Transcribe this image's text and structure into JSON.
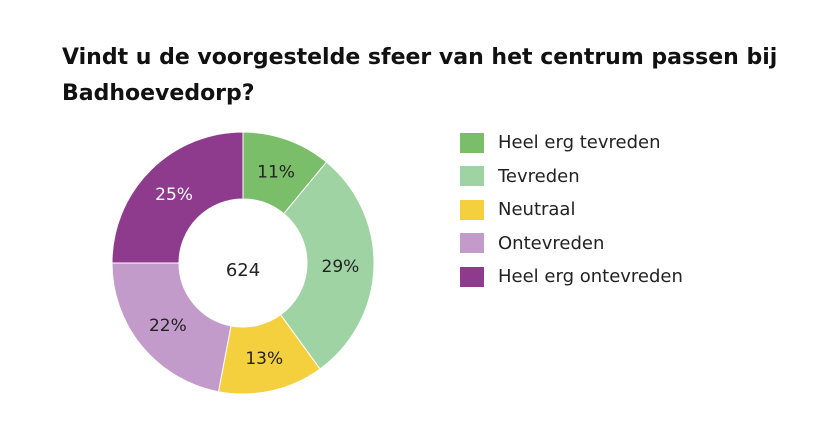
{
  "chart_data": {
    "type": "donut",
    "title": "Vindt u de voorgestelde sfeer van het centrum passen bij Badhoevedorp?",
    "center_label": "624",
    "categories": [
      "Heel erg tevreden",
      "Tevreden",
      "Neutraal",
      "Ontevreden",
      "Heel erg ontevreden"
    ],
    "values": [
      11,
      29,
      13,
      22,
      25
    ],
    "value_labels": [
      "11%",
      "29%",
      "13%",
      "22%",
      "25%"
    ],
    "colors": [
      "#7bbe6a",
      "#9fd3a4",
      "#f4d03f",
      "#c39bca",
      "#8e3b8e"
    ],
    "label_colors": [
      "#222222",
      "#222222",
      "#222222",
      "#222222",
      "#ffffff"
    ],
    "legend_position": "right"
  }
}
